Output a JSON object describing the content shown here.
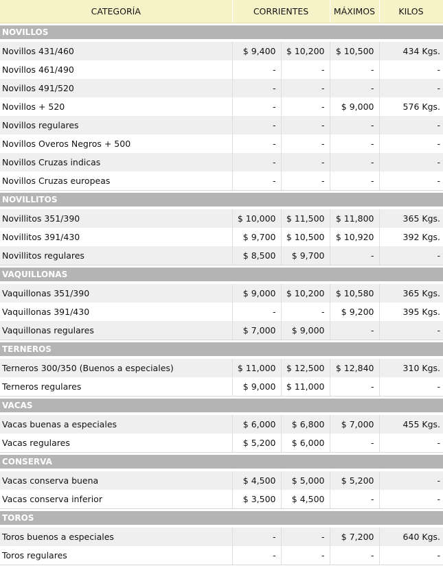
{
  "headers": [
    "CATEGORÍA",
    "CORRIENTES",
    "MÁXIMOS",
    "KILOS"
  ],
  "sections": [
    {
      "title": "NOVILLOS",
      "rows": [
        [
          "Novillos 431/460",
          "$ 9,400",
          "$ 10,200",
          "$ 10,500",
          "434 Kgs."
        ],
        [
          "Novillos 461/490",
          "-",
          "-",
          "-",
          "-"
        ],
        [
          "Novillos 491/520",
          "-",
          "-",
          "-",
          "-"
        ],
        [
          "Novillos + 520",
          "-",
          "-",
          "$ 9,000",
          "576 Kgs."
        ],
        [
          "Novillos regulares",
          "-",
          "-",
          "-",
          "-"
        ],
        [
          "Novillos Overos Negros + 500",
          "-",
          "-",
          "-",
          "-"
        ],
        [
          "Novillos Cruzas indicas",
          "-",
          "-",
          "-",
          "-"
        ],
        [
          "Novillos Cruzas europeas",
          "-",
          "-",
          "-",
          "-"
        ]
      ]
    },
    {
      "title": "NOVILLITOS",
      "rows": [
        [
          "Novillitos 351/390",
          "$ 10,000",
          "$ 11,500",
          "$ 11,800",
          "365 Kgs."
        ],
        [
          "Novillitos 391/430",
          "$ 9,700",
          "$ 10,500",
          "$ 10,920",
          "392 Kgs."
        ],
        [
          "Novillitos regulares",
          "$ 8,500",
          "$ 9,700",
          "-",
          "-"
        ]
      ]
    },
    {
      "title": "VAQUILLONAS",
      "rows": [
        [
          "Vaquillonas 351/390",
          "$ 9,000",
          "$ 10,200",
          "$ 10,580",
          "365 Kgs."
        ],
        [
          "Vaquillonas 391/430",
          "-",
          "-",
          "$ 9,200",
          "395 Kgs."
        ],
        [
          "Vaquillonas regulares",
          "$ 7,000",
          "$ 9,000",
          "-",
          "-"
        ]
      ]
    },
    {
      "title": "TERNEROS",
      "rows": [
        [
          "Terneros 300/350 (Buenos a especiales)",
          "$ 11,000",
          "$ 12,500",
          "$ 12,840",
          "310 Kgs."
        ],
        [
          "Terneros regulares",
          "$ 9,000",
          "$ 11,000",
          "-",
          "-"
        ]
      ]
    },
    {
      "title": "VACAS",
      "rows": [
        [
          "Vacas buenas a especiales",
          "$ 6,000",
          "$ 6,800",
          "$ 7,000",
          "455 Kgs."
        ],
        [
          "Vacas regulares",
          "$ 5,200",
          "$ 6,000",
          "-",
          "-"
        ]
      ]
    },
    {
      "title": "CONSERVA",
      "rows": [
        [
          "Vacas conserva buena",
          "$ 4,500",
          "$ 5,000",
          "$ 5,200",
          "-"
        ],
        [
          "Vacas conserva inferior",
          "$ 3,500",
          "$ 4,500",
          "-",
          "-"
        ]
      ]
    },
    {
      "title": "TOROS",
      "rows": [
        [
          "Toros buenos a especiales",
          "-",
          "-",
          "$ 7,200",
          "640 Kgs."
        ],
        [
          "Toros regulares",
          "-",
          "-",
          "-",
          "-"
        ]
      ]
    }
  ]
}
